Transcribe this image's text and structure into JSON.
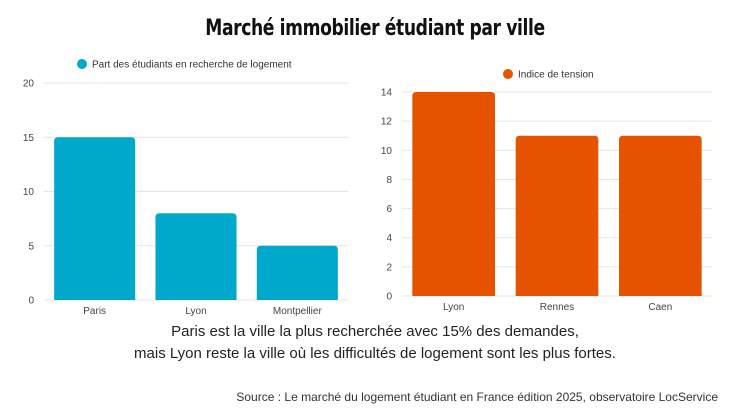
{
  "title": "Marché immobilier étudiant par ville",
  "caption_line1": "Paris est la ville la plus recherchée avec 15% des demandes,",
  "caption_line2": "mais Lyon reste la ville où les difficultés de logement sont les plus fortes.",
  "source": "Source : Le marché du logement étudiant en France édition 2025, observatoire LocService",
  "chart_data": [
    {
      "type": "bar",
      "title": "",
      "legend": "Part des étudiants en recherche de logement",
      "legend_position": "top-left",
      "color": "#00a8cc",
      "categories": [
        "Paris",
        "Lyon",
        "Montpellier"
      ],
      "values": [
        15,
        8,
        5
      ],
      "ylim": [
        0,
        20
      ],
      "yticks": [
        0,
        5,
        10,
        15,
        20
      ],
      "grid": true
    },
    {
      "type": "bar",
      "title": "",
      "legend": "Indice de tension",
      "legend_position": "top-center",
      "color": "#e65300",
      "categories": [
        "Lyon",
        "Rennes",
        "Caen"
      ],
      "values": [
        14,
        11,
        11
      ],
      "ylim": [
        0,
        14
      ],
      "yticks": [
        0,
        2,
        4,
        6,
        8,
        10,
        12,
        14
      ],
      "grid": true
    }
  ]
}
